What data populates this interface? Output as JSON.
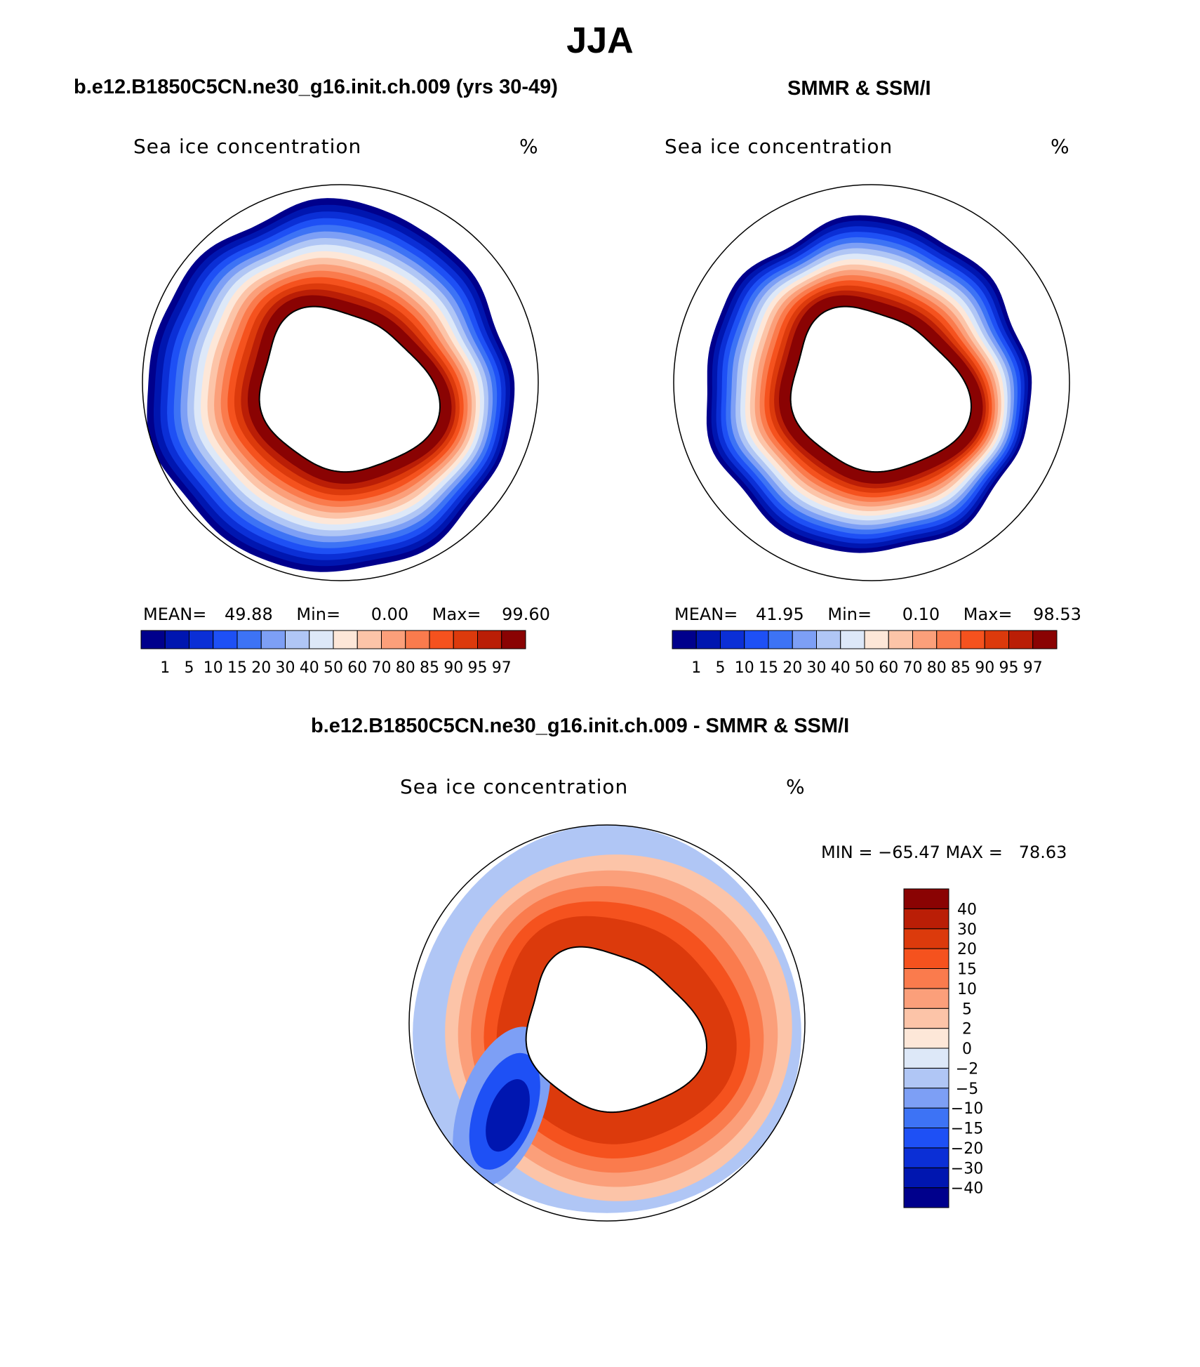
{
  "figure": {
    "title": "JJA"
  },
  "colors": {
    "seq": [
      "#00008c",
      "#0016b0",
      "#0b2fd6",
      "#1e50f5",
      "#3d73f5",
      "#7d9ff5",
      "#b0c6f5",
      "#dde8f8",
      "#fde7d8",
      "#fcc4a8",
      "#fb9f7a",
      "#fa7b4d",
      "#f5521e",
      "#dc3a0c",
      "#ba1e06",
      "#8a0303"
    ],
    "diff": [
      "#00008c",
      "#0016b0",
      "#0b2fd6",
      "#1e50f5",
      "#3d73f5",
      "#7d9ff5",
      "#b0c6f5",
      "#dde8f8",
      "#fde7d8",
      "#fcc4a8",
      "#fb9f7a",
      "#fa7b4d",
      "#f5521e",
      "#dc3a0c",
      "#ba1e06",
      "#8a0303"
    ],
    "land": "#ffffff",
    "coast": "#000000"
  },
  "panels": {
    "model": {
      "title": "b.e12.B1850C5CN.ne30_g16.init.ch.009 (yrs 30-49)",
      "label_left": "Sea ice concentration",
      "label_right": "%",
      "mean_label": "MEAN=",
      "mean_value": "49.88",
      "min_label": "Min=",
      "min_value": "0.00",
      "max_label": "Max=",
      "max_value": "99.60"
    },
    "obs": {
      "title": "SMMR & SSM/I",
      "label_left": "Sea ice concentration",
      "label_right": "%",
      "mean_label": "MEAN=",
      "mean_value": "41.95",
      "min_label": "Min=",
      "min_value": "0.10",
      "max_label": "Max=",
      "max_value": "98.53"
    },
    "diff": {
      "title": "b.e12.B1850C5CN.ne30_g16.init.ch.009 - SMMR & SSM/I",
      "label_left": "Sea ice concentration",
      "label_right": "%",
      "minmax": "MIN = −65.47 MAX =   78.63"
    }
  },
  "chart_data": [
    {
      "type": "heatmap",
      "projection": "south-polar-stereographic",
      "title": "b.e12.B1850C5CN.ne30_g16.init.ch.009 (yrs 30-49)",
      "variable": "Sea ice concentration",
      "units": "%",
      "season": "JJA",
      "stats": {
        "mean": 49.88,
        "min": 0.0,
        "max": 99.6
      },
      "levels": [
        1,
        5,
        10,
        15,
        20,
        30,
        40,
        50,
        60,
        70,
        80,
        85,
        90,
        95,
        97
      ],
      "level_labels": [
        "1",
        "5",
        "10",
        "15",
        "20",
        "30",
        "40",
        "50",
        "60",
        "70",
        "80",
        "85",
        "90",
        "95",
        "97"
      ],
      "ice_edge_profile": [
        0.87,
        0.9,
        0.93,
        0.96,
        0.97,
        0.99,
        0.98,
        0.95,
        0.92,
        0.92,
        0.88,
        0.84
      ],
      "ice_edge_phase": 0.2
    },
    {
      "type": "heatmap",
      "projection": "south-polar-stereographic",
      "title": "SMMR & SSM/I",
      "variable": "Sea ice concentration",
      "units": "%",
      "season": "JJA",
      "stats": {
        "mean": 41.95,
        "min": 0.1,
        "max": 98.53
      },
      "levels": [
        1,
        5,
        10,
        15,
        20,
        30,
        40,
        50,
        60,
        70,
        80,
        85,
        90,
        95,
        97
      ],
      "level_labels": [
        "1",
        "5",
        "10",
        "15",
        "20",
        "30",
        "40",
        "50",
        "60",
        "70",
        "80",
        "85",
        "90",
        "95",
        "97"
      ],
      "ice_edge_profile": [
        0.8,
        0.82,
        0.85,
        0.86,
        0.87,
        0.86,
        0.84,
        0.84,
        0.82,
        0.84,
        0.8,
        0.78
      ],
      "ice_edge_phase": 0.6
    },
    {
      "type": "heatmap",
      "projection": "south-polar-stereographic",
      "title": "b.e12.B1850C5CN.ne30_g16.init.ch.009 - SMMR & SSM/I",
      "variable": "Sea ice concentration",
      "units": "%",
      "stats": {
        "min": -65.47,
        "max": 78.63
      },
      "levels": [
        -40,
        -30,
        -20,
        -15,
        -10,
        -5,
        -2,
        0,
        2,
        5,
        10,
        15,
        20,
        30,
        40
      ],
      "level_labels": [
        "−40",
        "−30",
        "−20",
        "−15",
        "−10",
        "−5",
        "−2",
        "0",
        "2",
        "5",
        "10",
        "15",
        "20",
        "30",
        "40"
      ]
    }
  ]
}
